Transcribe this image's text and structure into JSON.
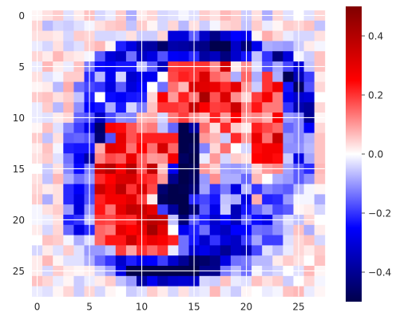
{
  "chart_data": {
    "type": "heatmap",
    "title": "",
    "xlabel": "",
    "ylabel": "",
    "rows": 28,
    "cols": 28,
    "xticks": [
      0,
      5,
      10,
      15,
      20,
      25
    ],
    "yticks": [
      0,
      5,
      10,
      15,
      20,
      25
    ],
    "colormap": "seismic",
    "vmin": -0.5,
    "vmax": 0.5,
    "colorbar_ticks": [
      "0.4",
      "0.2",
      "0.0",
      "−0.2",
      "−0.4"
    ],
    "colorbar_tick_values": [
      0.4,
      0.2,
      0.0,
      -0.2,
      -0.4
    ],
    "grid": true,
    "grid_color": "#ffffff",
    "cmap_stops": [
      "#00004c",
      "#0000ff",
      "#ffffff",
      "#ff0000",
      "#800000"
    ],
    "values": [
      [
        0.01,
        0.03,
        0.05,
        -0.03,
        0.02,
        0.06,
        -0.04,
        -0.02,
        0.05,
        -0.08,
        0.02,
        0.04,
        -0.04,
        -0.03,
        -0.01,
        -0.03,
        0.05,
        0.03,
        0.07,
        0.05,
        -0.05,
        0.03,
        -0.08,
        0.04,
        -0.03,
        0.0,
        -0.03,
        0.04
      ],
      [
        0.04,
        -0.07,
        -0.04,
        -0.05,
        -0.03,
        -0.01,
        0.03,
        0.05,
        0.06,
        -0.06,
        0.05,
        0.01,
        -0.04,
        0.04,
        -0.07,
        0.03,
        -0.05,
        -0.01,
        0.04,
        0.05,
        -0.06,
        0.05,
        -0.02,
        0.01,
        0.05,
        0.04,
        0.06,
        -0.06
      ],
      [
        0.03,
        0.03,
        0.02,
        -0.04,
        0.05,
        0.04,
        -0.04,
        -0.04,
        -0.03,
        0.03,
        -0.05,
        -0.05,
        0.04,
        -0.3,
        -0.3,
        -0.16,
        -0.33,
        -0.42,
        -0.32,
        -0.25,
        -0.27,
        0.01,
        0.08,
        0.04,
        -0.02,
        -0.04,
        -0.04,
        0.03
      ],
      [
        -0.02,
        -0.04,
        0.03,
        -0.05,
        -0.03,
        0.05,
        0.07,
        0.01,
        -0.22,
        -0.29,
        -0.37,
        -0.38,
        -0.46,
        -0.37,
        -0.38,
        -0.4,
        -0.42,
        -0.53,
        -0.55,
        -0.33,
        -0.44,
        -0.28,
        -0.08,
        -0.09,
        -0.1,
        -0.05,
        0.02,
        -0.01
      ],
      [
        0.04,
        0.02,
        0.07,
        0.03,
        0.02,
        -0.01,
        -0.16,
        -0.3,
        -0.33,
        -0.14,
        -0.33,
        -0.29,
        -0.17,
        -0.26,
        -0.27,
        -0.21,
        -0.38,
        -0.34,
        -0.43,
        -0.32,
        -0.23,
        -0.06,
        -0.2,
        -0.43,
        -0.3,
        -0.01,
        -0.05,
        0.06
      ],
      [
        -0.02,
        0.07,
        0.02,
        -0.02,
        0.06,
        -0.13,
        -0.24,
        -0.26,
        -0.23,
        -0.23,
        -0.06,
        -0.16,
        -0.34,
        0.19,
        0.2,
        0.2,
        0.2,
        0.11,
        0.34,
        0.02,
        0.11,
        -0.03,
        -0.17,
        -0.09,
        -0.18,
        -0.3,
        -0.06,
        0.06
      ],
      [
        0.03,
        -0.03,
        -0.01,
        0.05,
        0.05,
        -0.21,
        -0.07,
        -0.27,
        -0.04,
        -0.32,
        -0.28,
        -0.27,
        0.0,
        0.18,
        0.22,
        0.2,
        0.32,
        0.15,
        0.12,
        -0.08,
        0.15,
        -0.08,
        0.2,
        -0.08,
        -0.49,
        -0.35,
        -0.19,
        0.02
      ],
      [
        0.01,
        0.02,
        -0.07,
        0.08,
        -0.14,
        -0.18,
        -0.2,
        -0.29,
        -0.16,
        -0.3,
        -0.25,
        0.0,
        -0.14,
        0.14,
        0.07,
        0.32,
        0.31,
        0.29,
        0.21,
        0.3,
        0.1,
        -0.05,
        0.2,
        0.28,
        -0.23,
        -0.47,
        -0.17,
        0.04
      ],
      [
        0.05,
        0.06,
        0.03,
        0.05,
        -0.06,
        -0.22,
        0.0,
        -0.24,
        -0.26,
        -0.23,
        -0.22,
        0.04,
        0.26,
        0.1,
        0.22,
        0.13,
        0.42,
        0.17,
        0.32,
        0.11,
        0.04,
        0.19,
        0.27,
        0.13,
        -0.27,
        -0.32,
        -0.3,
        0.0
      ],
      [
        -0.02,
        0.05,
        -0.07,
        0.07,
        -0.11,
        -0.25,
        -0.23,
        -0.08,
        -0.23,
        -0.04,
        -0.13,
        0.06,
        0.2,
        0.2,
        0.18,
        0.36,
        0.26,
        0.19,
        0.2,
        0.35,
        0.13,
        0.23,
        0.13,
        0.13,
        -0.2,
        -0.36,
        -0.39,
        0.04
      ],
      [
        -0.02,
        -0.03,
        0.02,
        0.04,
        -0.15,
        -0.17,
        -0.33,
        -0.18,
        -0.11,
        -0.12,
        0.07,
        0.08,
        -0.04,
        0.13,
        0.19,
        0.11,
        0.07,
        0.22,
        0.1,
        0.25,
        0.1,
        0.12,
        0.08,
        0.26,
        -0.1,
        -0.12,
        -0.4,
        0.01
      ],
      [
        0.01,
        0.06,
        -0.03,
        -0.12,
        -0.19,
        -0.28,
        -0.46,
        0.26,
        0.24,
        0.17,
        0.11,
        0.13,
        -0.06,
        -0.15,
        -0.56,
        -0.38,
        0.14,
        0.03,
        0.21,
        0.05,
        0.02,
        0.22,
        0.18,
        0.15,
        -0.15,
        -0.12,
        -0.26,
        0.04
      ],
      [
        0.05,
        -0.06,
        0.03,
        -0.16,
        -0.15,
        -0.17,
        -0.44,
        -0.17,
        0.3,
        0.17,
        0.22,
        0.22,
        0.22,
        0.22,
        -0.51,
        -0.5,
        0.1,
        0.07,
        -0.05,
        0.21,
        0.1,
        0.29,
        0.14,
        0.36,
        -0.1,
        -0.12,
        -0.08,
        0.06
      ],
      [
        0.02,
        0.06,
        -0.01,
        -0.22,
        -0.23,
        -0.23,
        0.08,
        0.31,
        0.29,
        0.14,
        0.25,
        0.14,
        0.33,
        0.15,
        -0.54,
        -0.48,
        -0.12,
        0.04,
        0.14,
        0.0,
        -0.04,
        0.24,
        0.27,
        0.27,
        -0.11,
        -0.11,
        -0.07,
        0.06
      ],
      [
        0.03,
        0.05,
        -0.03,
        -0.14,
        -0.27,
        -0.37,
        0.12,
        0.18,
        0.16,
        0.29,
        0.16,
        0.1,
        0.11,
        0.27,
        -0.47,
        -0.61,
        -0.02,
        0.1,
        -0.04,
        0.05,
        0.03,
        0.25,
        0.27,
        0.24,
        -0.05,
        -0.29,
        -0.09,
        0.06
      ],
      [
        0.0,
        -0.05,
        0.03,
        -0.12,
        -0.24,
        -0.13,
        0.34,
        0.39,
        0.27,
        0.39,
        0.17,
        0.37,
        0.06,
        -0.27,
        -0.53,
        -0.48,
        0.1,
        0.05,
        -0.09,
        -0.1,
        -0.08,
        0.04,
        0.1,
        0.12,
        -0.09,
        -0.16,
        -0.21,
        0.07
      ],
      [
        0.03,
        -0.06,
        0.07,
        -0.08,
        -0.14,
        -0.1,
        0.21,
        0.25,
        0.32,
        0.33,
        0.22,
        0.2,
        0.1,
        -0.41,
        -0.51,
        -0.47,
        -0.1,
        0.11,
        -0.08,
        -0.08,
        -0.15,
        0.07,
        0.0,
        -0.08,
        -0.1,
        -0.16,
        -0.11,
        0.06
      ],
      [
        0.04,
        0.02,
        0.03,
        -0.21,
        -0.26,
        -0.18,
        0.35,
        0.28,
        0.38,
        0.2,
        0.32,
        0.18,
        -0.45,
        -0.63,
        -0.49,
        -0.44,
        -0.09,
        -0.2,
        -0.13,
        -0.29,
        -0.07,
        -0.2,
        -0.12,
        -0.14,
        -0.16,
        -0.07,
        -0.01,
        0.01
      ],
      [
        0.05,
        -0.08,
        0.03,
        -0.21,
        -0.29,
        -0.17,
        0.22,
        0.27,
        0.27,
        0.31,
        0.19,
        0.02,
        -0.48,
        -0.51,
        -0.59,
        -0.21,
        -0.18,
        -0.23,
        -0.06,
        -0.08,
        -0.29,
        0.08,
        -0.22,
        -0.21,
        -0.1,
        -0.01,
        -0.01,
        -0.08
      ],
      [
        -0.01,
        0.03,
        0.05,
        -0.1,
        -0.3,
        -0.11,
        0.23,
        0.14,
        0.3,
        0.37,
        0.35,
        0.3,
        -0.19,
        -0.39,
        -0.54,
        -0.44,
        -0.16,
        -0.28,
        -0.05,
        -0.35,
        -0.23,
        -0.15,
        -0.1,
        -0.18,
        -0.16,
        0.01,
        0.02,
        -0.04
      ],
      [
        -0.01,
        -0.02,
        0.03,
        -0.22,
        -0.2,
        -0.06,
        0.19,
        0.18,
        0.22,
        0.21,
        0.32,
        0.38,
        0.36,
        -0.06,
        -0.44,
        -0.16,
        -0.22,
        -0.32,
        -0.25,
        -0.34,
        -0.15,
        -0.24,
        -0.28,
        -0.1,
        -0.03,
        -0.06,
        0.04,
        0.0
      ],
      [
        0.02,
        -0.04,
        0.04,
        -0.15,
        -0.29,
        -0.21,
        0.15,
        0.13,
        0.3,
        0.25,
        0.29,
        0.43,
        0.31,
        0.0,
        -0.27,
        -0.22,
        -0.14,
        -0.3,
        -0.34,
        -0.25,
        -0.25,
        -0.14,
        -0.15,
        -0.11,
        -0.05,
        0.06,
        -0.08,
        0.02
      ],
      [
        0.0,
        0.06,
        0.05,
        -0.01,
        -0.08,
        -0.03,
        0.15,
        0.23,
        0.23,
        0.35,
        0.24,
        0.29,
        0.26,
        0.22,
        -0.14,
        -0.23,
        -0.32,
        -0.2,
        -0.3,
        -0.33,
        -0.19,
        -0.09,
        -0.19,
        -0.19,
        -0.03,
        0.04,
        0.06,
        -0.04
      ],
      [
        -0.04,
        0.02,
        -0.03,
        0.05,
        -0.03,
        -0.1,
        -0.1,
        -0.06,
        0.19,
        0.09,
        0.2,
        0.15,
        0.2,
        -0.02,
        -0.14,
        -0.31,
        -0.28,
        -0.33,
        -0.4,
        -0.33,
        -0.35,
        -0.18,
        -0.03,
        -0.07,
        -0.02,
        0.04,
        0.02,
        0.05
      ],
      [
        0.02,
        0.07,
        0.01,
        -0.03,
        -0.03,
        -0.08,
        -0.15,
        -0.2,
        -0.32,
        -0.22,
        -0.27,
        -0.25,
        -0.19,
        -0.32,
        -0.4,
        -0.48,
        -0.46,
        -0.42,
        -0.29,
        -0.14,
        -0.13,
        -0.07,
        -0.07,
        0.02,
        0.05,
        0.03,
        0.0,
        0.06
      ],
      [
        0.02,
        -0.04,
        0.05,
        0.02,
        0.01,
        0.02,
        -0.05,
        -0.1,
        -0.29,
        -0.55,
        -0.6,
        -0.53,
        -0.54,
        -0.62,
        -0.54,
        -0.62,
        -0.41,
        -0.41,
        -0.13,
        -0.07,
        -0.14,
        -0.01,
        -0.06,
        -0.04,
        0.0,
        -0.03,
        0.07,
        0.01
      ],
      [
        0.06,
        0.04,
        -0.02,
        0.01,
        -0.05,
        -0.02,
        0.02,
        0.05,
        -0.06,
        -0.1,
        -0.38,
        -0.27,
        -0.36,
        -0.32,
        -0.31,
        -0.32,
        -0.04,
        -0.05,
        0.06,
        -0.02,
        -0.03,
        0.06,
        0.03,
        0.05,
        -0.05,
        0.0,
        0.04,
        -0.01
      ],
      [
        -0.02,
        -0.03,
        0.01,
        0.04,
        -0.05,
        0.04,
        -0.04,
        0.01,
        0.0,
        -0.05,
        -0.03,
        0.05,
        0.02,
        -0.04,
        0.03,
        -0.03,
        -0.02,
        0.07,
        -0.02,
        -0.05,
        0.01,
        0.0,
        -0.02,
        -0.01,
        0.06,
        0.07,
        -0.02,
        0.01
      ]
    ]
  }
}
